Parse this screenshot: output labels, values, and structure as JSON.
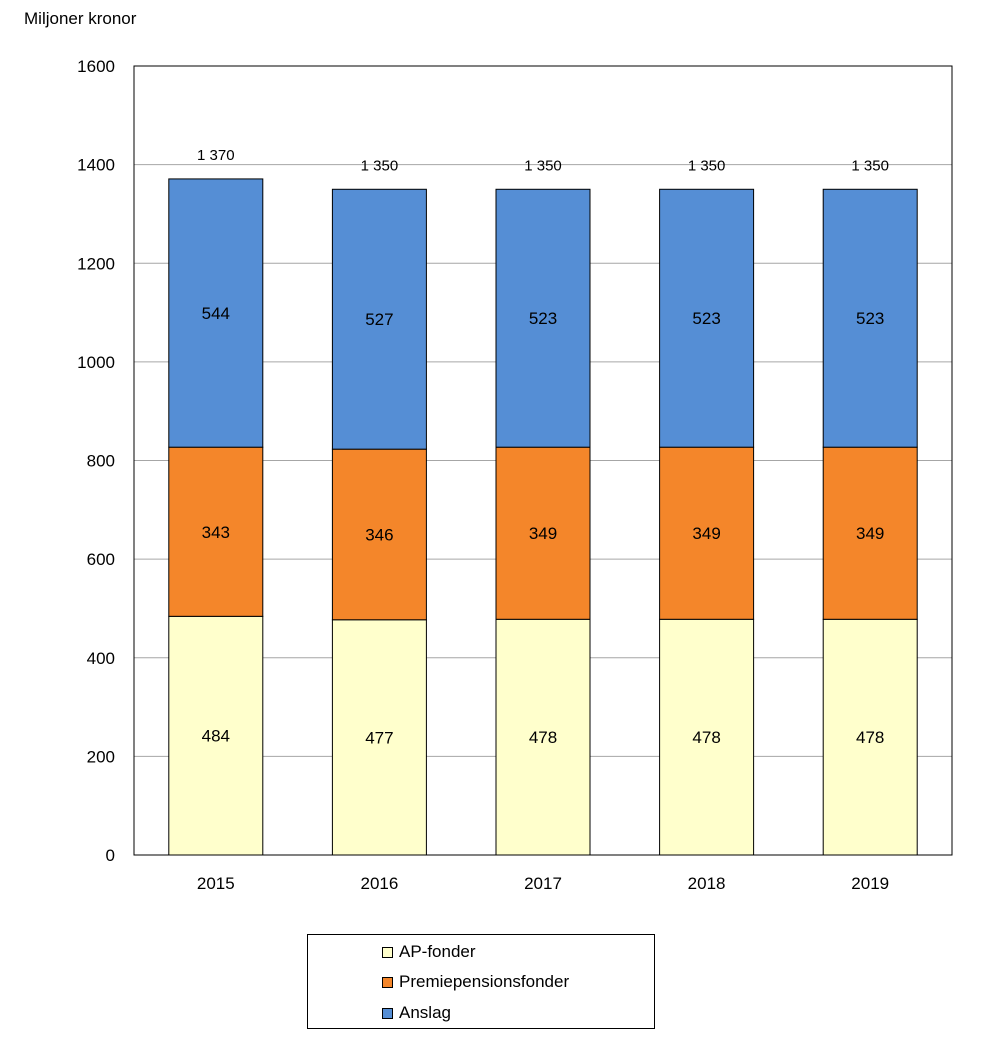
{
  "chart_data": {
    "type": "bar",
    "stacked": true,
    "ylabel": "Miljoner kronor",
    "ylim": [
      0,
      1600
    ],
    "yticks": [
      0,
      200,
      400,
      600,
      800,
      1000,
      1200,
      1400,
      1600
    ],
    "grid": true,
    "legend_position": "bottom",
    "categories": [
      "2015",
      "2016",
      "2017",
      "2018",
      "2019"
    ],
    "series": [
      {
        "name": "AP-fonder",
        "color": "#FFFFCC",
        "values": [
          484,
          477,
          478,
          478,
          478
        ]
      },
      {
        "name": "Premiepensionsfonder",
        "color": "#F4862A",
        "values": [
          343,
          346,
          349,
          349,
          349
        ]
      },
      {
        "name": "Anslag",
        "color": "#558ED5",
        "values": [
          544,
          527,
          523,
          523,
          523
        ]
      }
    ],
    "totals": [
      "1 370",
      "1 350",
      "1 350",
      "1 350",
      "1 350"
    ]
  }
}
